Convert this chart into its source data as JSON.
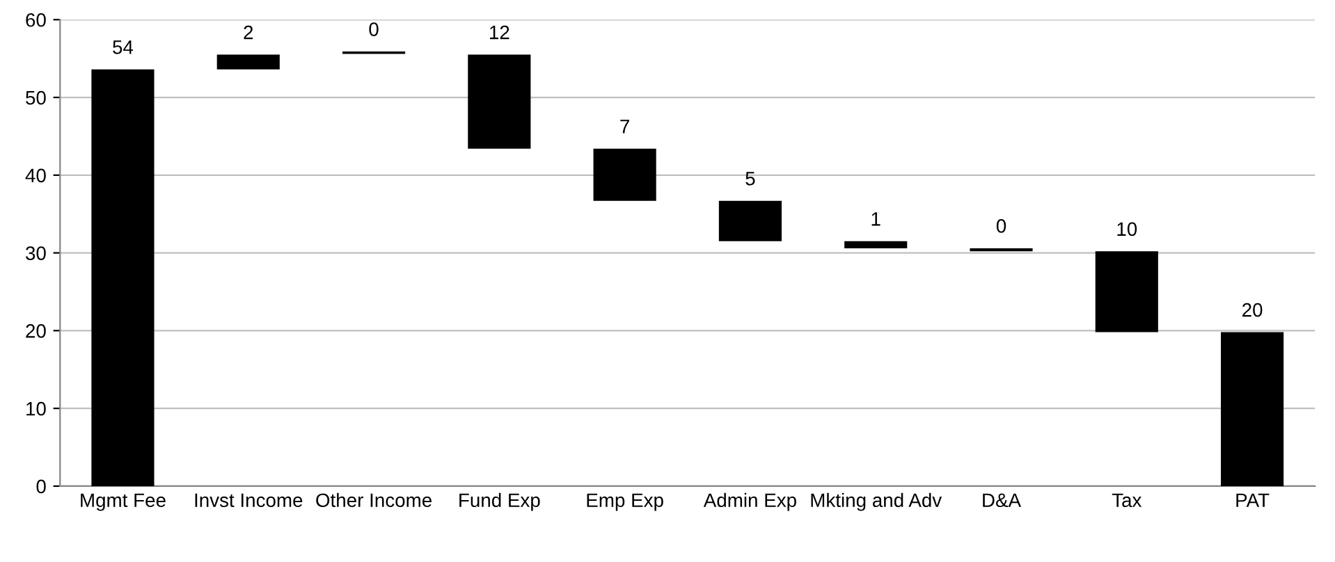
{
  "chart_data": {
    "type": "bar",
    "categories": [
      "Mgmt Fee",
      "Invst Income",
      "Other Income",
      "Fund Exp",
      "Emp Exp",
      "Admin Exp",
      "Mkting and Adv",
      "D&A",
      "Tax",
      "PAT"
    ],
    "base": [
      0,
      53.6,
      55.6,
      43.4,
      36.7,
      31.5,
      30.6,
      30.2,
      19.8,
      0
    ],
    "values": [
      53.6,
      1.9,
      0.3,
      12.1,
      6.7,
      5.2,
      0.9,
      0.4,
      10.4,
      19.8
    ],
    "value_labels": [
      "54",
      "2",
      "0",
      "12",
      "7",
      "5",
      "1",
      "0",
      "10",
      "20"
    ],
    "color": "#000000",
    "ylim": [
      0,
      60
    ],
    "yticks": [
      0,
      10,
      20,
      30,
      40,
      50,
      60
    ],
    "grid": "y",
    "legend": false
  }
}
